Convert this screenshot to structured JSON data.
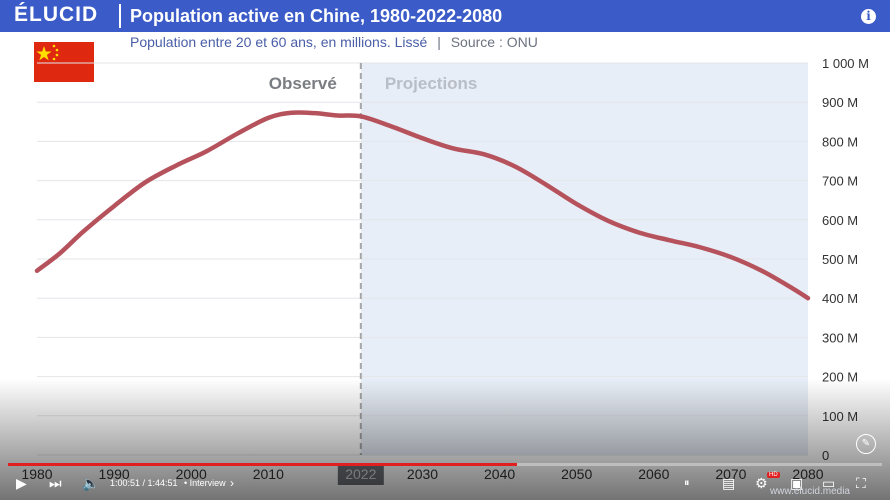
{
  "header": {
    "brand": "ÉLUCID",
    "title": "Population active en Chine, 1980-2022-2080",
    "subtitle": "Population entre 20 et 60 ans, en millions. Lissé",
    "source": "Source : ONU",
    "subtitle_separator": "|",
    "info_icon": "info-icon"
  },
  "colors": {
    "header_bg": "#3a5bc8",
    "line": "#b5525c",
    "projection_bg": "#e8eef7"
  },
  "chart_data": {
    "type": "line",
    "title": "Population active en Chine, 1980-2022-2080",
    "subtitle": "Population entre 20 et 60 ans, en millions. Lissé",
    "xlim": [
      1980,
      2080
    ],
    "ylim": [
      0,
      1000
    ],
    "x_ticks": [
      "1980",
      "1990",
      "2000",
      "2010",
      "2022",
      "2030",
      "2040",
      "2050",
      "2060",
      "2070",
      "2080"
    ],
    "y_ticks": [
      "0",
      "100 M",
      "200 M",
      "300 M",
      "400 M",
      "500 M",
      "600 M",
      "700 M",
      "800 M",
      "900 M",
      "1 000 M"
    ],
    "highlight_x": "2022",
    "observed_label": "Observé",
    "projection_label": "Projections",
    "divider_year": 2022,
    "grid": true,
    "series": [
      {
        "x": [
          1980,
          1983,
          1986,
          1990,
          1994,
          1998,
          2002,
          2006,
          2010,
          2013,
          2016,
          2019,
          2022,
          2026,
          2030,
          2034,
          2038,
          2042,
          2046,
          2050,
          2054,
          2058,
          2062,
          2066,
          2070,
          2074,
          2078,
          2080
        ],
        "values": [
          470,
          515,
          570,
          635,
          695,
          738,
          775,
          820,
          860,
          873,
          872,
          866,
          864,
          838,
          808,
          782,
          767,
          736,
          690,
          640,
          598,
          568,
          548,
          530,
          505,
          470,
          425,
          400
        ]
      }
    ]
  },
  "player": {
    "time": "1:00:51 / 1:44:51",
    "chapter": "• Interview",
    "chapter_arrow": "›",
    "progress": 0.582,
    "website": "www.elucid.media",
    "hd_badge": "HD"
  }
}
